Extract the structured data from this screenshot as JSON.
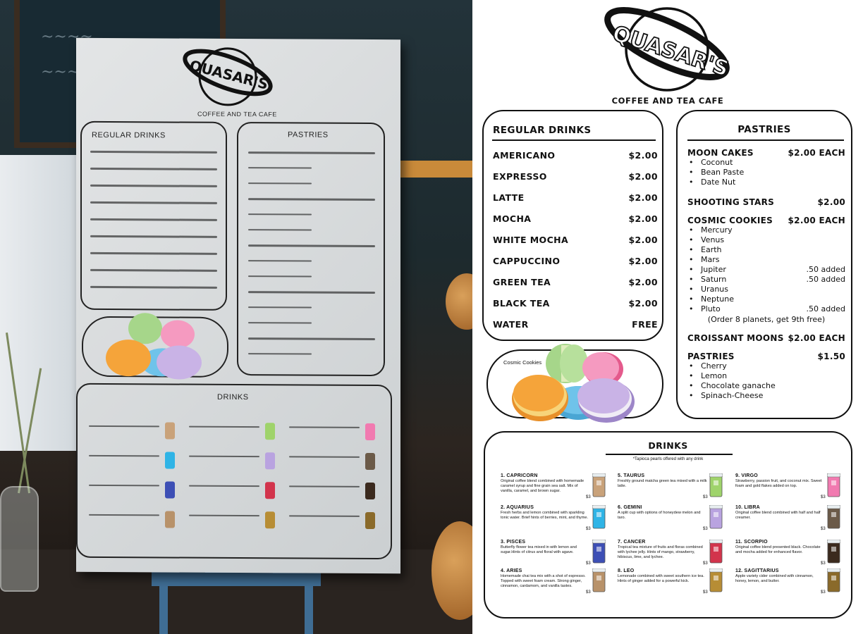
{
  "logo": {
    "name": "QUASAR'S",
    "subtitle": "COFFEE AND TEA CAFE"
  },
  "regular_drinks": {
    "title": "REGULAR DRINKS",
    "items": [
      {
        "name": "AMERICANO",
        "price": "$2.00"
      },
      {
        "name": "EXPRESSO",
        "price": "$2.00"
      },
      {
        "name": "LATTE",
        "price": "$2.00"
      },
      {
        "name": "MOCHA",
        "price": "$2.00"
      },
      {
        "name": "WHITE MOCHA",
        "price": "$2.00"
      },
      {
        "name": "CAPPUCCINO",
        "price": "$2.00"
      },
      {
        "name": "GREEN TEA",
        "price": "$2.00"
      },
      {
        "name": "BLACK TEA",
        "price": "$2.00"
      },
      {
        "name": "WATER",
        "price": "FREE"
      }
    ]
  },
  "pastries": {
    "title": "PASTRIES",
    "sections": [
      {
        "name": "MOON CAKES",
        "price": "$2.00 EACH",
        "items": [
          {
            "name": "Coconut",
            "extra": ""
          },
          {
            "name": "Bean Paste",
            "extra": ""
          },
          {
            "name": "Date Nut",
            "extra": ""
          }
        ]
      },
      {
        "name": "SHOOTING STARS",
        "price": "$2.00",
        "items": []
      },
      {
        "name": "COSMIC COOKIES",
        "price": "$2.00 EACH",
        "items": [
          {
            "name": "Mercury",
            "extra": ""
          },
          {
            "name": "Venus",
            "extra": ""
          },
          {
            "name": "Earth",
            "extra": ""
          },
          {
            "name": "Mars",
            "extra": ""
          },
          {
            "name": "Jupiter",
            "extra": ".50 added"
          },
          {
            "name": "Saturn",
            "extra": ".50 added"
          },
          {
            "name": "Uranus",
            "extra": ""
          },
          {
            "name": "Neptune",
            "extra": ""
          },
          {
            "name": "Pluto",
            "extra": ".50 added"
          }
        ],
        "note": "(Order 8 planets, get 9th free)"
      },
      {
        "name": "CROISSANT MOONS",
        "price": "$2.00 EACH",
        "items": []
      },
      {
        "name": "PASTRIES",
        "price": "$1.50",
        "items": [
          {
            "name": "Cherry",
            "extra": ""
          },
          {
            "name": "Lemon",
            "extra": ""
          },
          {
            "name": "Chocolate ganache",
            "extra": ""
          },
          {
            "name": "Spinach-Cheese",
            "extra": ""
          }
        ]
      }
    ]
  },
  "cookies_panel": {
    "label": "Cosmic Cookies"
  },
  "drinks": {
    "title": "DRINKS",
    "note": "*Tapioca pearls offered with any drink",
    "items": [
      {
        "name": "1. CAPRICORN",
        "desc": "Original coffee blend combined with homemade caramel syrup and fine grain sea salt. Mix of vanilla, caramel, and brown sugar.",
        "price": "$3",
        "color": "#c9a27a"
      },
      {
        "name": "2. AQUARIUS",
        "desc": "Fresh herbs and lemon combined with sparkling tonic water. Brief hints of berries, mint, and thyme.",
        "price": "$3",
        "color": "#2fb4e6"
      },
      {
        "name": "3. PISCES",
        "desc": "Butterfly flower tea mixed in with lemon and sugar.Hints of citrus and floral with agave.",
        "price": "$3",
        "color": "#3d4fb5"
      },
      {
        "name": "4. ARIES",
        "desc": "Homemade chai tea mix with a shot of espresso. Topped with sweet foam cream. Strong ginger, cinnamon, cardamom, and vanilla tastes.",
        "price": "$3",
        "color": "#b8926a"
      },
      {
        "name": "5. TAURUS",
        "desc": "Freshly ground matcha green tea mixed with a milk latte.",
        "price": "$3",
        "color": "#9fd36b"
      },
      {
        "name": "6. GEMINI",
        "desc": "A split cup with options of  honeydew melon and taro.",
        "price": "$3",
        "color": "#b9a3e0"
      },
      {
        "name": "7. CANCER",
        "desc": "Tropical tea mixture of fruits and floras combined with lychee jelly. Hints of mango, strawberry, hibiscus, lime, and lychee.",
        "price": "$3",
        "color": "#d2344c"
      },
      {
        "name": "8. LEO",
        "desc": "Lemonade combined with sweet southern ice tea. Hints of ginger added for a powerful kick.",
        "price": "$3",
        "color": "#b78d35"
      },
      {
        "name": "9. VIRGO",
        "desc": "Strawberry, passion fruit, and coconut mix. Sweet foam and gold flakes added on top.",
        "price": "$3",
        "color": "#f17ab0"
      },
      {
        "name": "10. LIBRA",
        "desc": "Original coffee blend combined with half and half creamer.",
        "price": "$3",
        "color": "#6b5a48"
      },
      {
        "name": "11. SCORPIO",
        "desc": "Original coffee blend presented black. Chocolate and mocha added for enhanced flavor.",
        "price": "$3",
        "color": "#3b2a1e"
      },
      {
        "name": "12. SAGITTARIUS",
        "desc": "Apple variety cider combined with cinnamon, honey, lemon, and butter.",
        "price": "$3",
        "color": "#8a6a2a"
      }
    ]
  },
  "colors": {
    "ink": "#111111",
    "cookie_green": "#a6d68a",
    "cookie_pink": "#f59ac0",
    "cookie_orange": "#f5a43a",
    "cookie_blue": "#6fc3ea",
    "cookie_purple": "#c9b3e6"
  }
}
